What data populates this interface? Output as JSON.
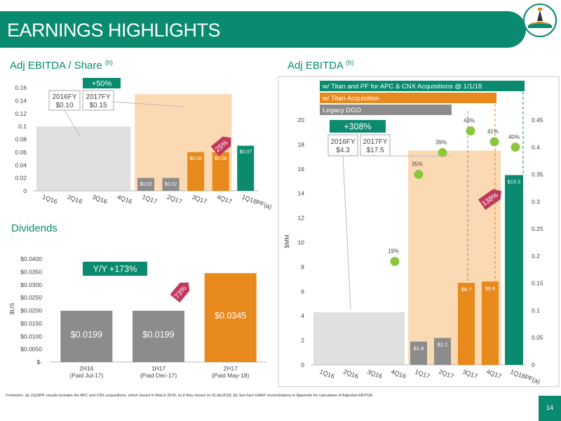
{
  "header": {
    "title": "EARNINGS HIGHLIGHTS"
  },
  "sections": {
    "eps_title": "Adj EBITDA / Share",
    "eps_sup": "(b)",
    "ebitda_title": "Adj EBITDA",
    "ebitda_sup": "(b)",
    "div_title": "Dividends"
  },
  "colors": {
    "brand": "#0a8a6e",
    "gray": "#e0e0e0",
    "gray_dark": "#8c8c8c",
    "orange": "#e8891c",
    "orange_light": "#fad9b3",
    "green_dot": "#8cc63f"
  },
  "footnote": "Footnotes: (a) 1Q18PF results includes the APC and CNX acquisitions, which closed in March 2018, as if they closed on 01Jan2018; (b) See Non-GAAP reconciliations in Appendix for calculation of Adjusted EBITDA",
  "page_number": "14",
  "chart_data": [
    {
      "type": "bar",
      "title": "Adj EBITDA / Share",
      "categories": [
        "1Q16",
        "2Q16",
        "3Q16",
        "4Q16",
        "1Q17",
        "2Q17",
        "3Q17",
        "4Q17",
        "1Q18PF(a)"
      ],
      "values": [
        null,
        null,
        null,
        null,
        0.02,
        0.02,
        0.06,
        0.06,
        0.07
      ],
      "data_labels": [
        "",
        "",
        "",
        "",
        "$0.02",
        "$0.02",
        "$0.06",
        "$0.06",
        "$0.07"
      ],
      "ylim": [
        0,
        0.16
      ],
      "yticks": [
        "0",
        "0.02",
        "0.04",
        "0.06",
        "0.08",
        "0.1",
        "0.12",
        "0.14",
        "0.16"
      ],
      "fy": [
        {
          "label": "2016FY",
          "value": "$0.10"
        },
        {
          "label": "2017FY",
          "value": "$0.15"
        }
      ],
      "callout": "+50%",
      "arrow_label": "25%"
    },
    {
      "type": "bar",
      "title": "Dividends",
      "categories": [
        "2H16",
        "1H17",
        "2H17"
      ],
      "subcategories": [
        "(Paid Jul-17)",
        "(Paid Dec-17)",
        "(Paid May-18)"
      ],
      "values": [
        0.0199,
        0.0199,
        0.0345
      ],
      "data_labels": [
        "$0.0199",
        "$0.0199",
        "$0.0345"
      ],
      "ylim": [
        0,
        0.04
      ],
      "yticks": [
        "$-",
        "$0.0050",
        "$0.0100",
        "$0.0150",
        "$0.0200",
        "$0.0250",
        "$0.0300",
        "$0.0350",
        "$0.0400"
      ],
      "ylabel": "$US",
      "callout": "Y/Y +173%",
      "arrow_label": "73%"
    },
    {
      "type": "bar",
      "title": "Adj EBITDA",
      "categories": [
        "1Q16",
        "2Q16",
        "3Q16",
        "4Q16",
        "1Q17",
        "2Q17",
        "3Q17",
        "4Q17",
        "1Q18PF(a)"
      ],
      "values": [
        null,
        null,
        null,
        null,
        1.9,
        2.2,
        6.7,
        6.8,
        15.5
      ],
      "data_labels": [
        "",
        "",
        "",
        "",
        "$1.9",
        "$2.2",
        "$6.7",
        "$6.8",
        "$15.5"
      ],
      "margins": [
        null,
        null,
        null,
        null,
        0.35,
        0.39,
        0.43,
        0.41,
        0.4
      ],
      "margin_labels": [
        "",
        "",
        "",
        "19%",
        "35%",
        "39%",
        "43%",
        "41%",
        "40%"
      ],
      "margin_4q16": 0.19,
      "ylim": [
        0,
        20
      ],
      "yticks": [
        "0",
        "2",
        "4",
        "6",
        "8",
        "10",
        "12",
        "14",
        "16",
        "18",
        "20"
      ],
      "y2lim": [
        0,
        0.45
      ],
      "y2ticks": [
        "0",
        "0.05",
        "0.1",
        "0.15",
        "0.2",
        "0.25",
        "0.3",
        "0.35",
        "0.4",
        "0.45"
      ],
      "ylabel": "$MM",
      "fy": [
        {
          "label": "2016FY",
          "value": "$4.3"
        },
        {
          "label": "2017FY",
          "value": "$17.5"
        }
      ],
      "callout": "+308%",
      "arrow_label": "138%",
      "legend": [
        "w/ Titan and PF for APC & CNX Acquisitions @ 1/1/18",
        "w/ Titan Acquisition",
        "Legacy DGO"
      ]
    }
  ]
}
